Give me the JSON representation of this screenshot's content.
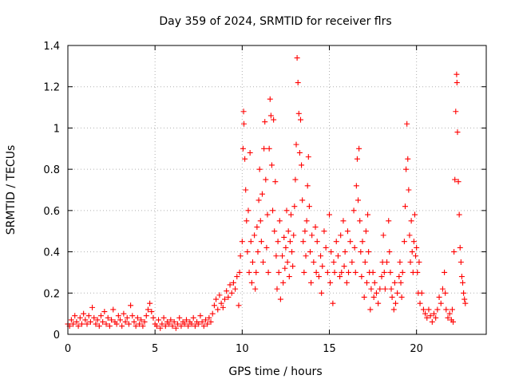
{
  "chart_data": {
    "type": "scatter",
    "title": "Day 359 of 2024, SRMTID for receiver flrs",
    "xlabel": "GPS time / hours",
    "ylabel": "SRMTID / TECUs",
    "xlim": [
      0,
      24
    ],
    "ylim": [
      0,
      1.4
    ],
    "xticks": [
      0,
      5,
      10,
      15,
      20
    ],
    "xtick_labels": [
      "0",
      "5",
      "10",
      "15",
      "20"
    ],
    "yticks": [
      0,
      0.2,
      0.4,
      0.6,
      0.8,
      1.0,
      1.2,
      1.4
    ],
    "ytick_labels": [
      "0",
      "0.2",
      "0.4",
      "0.6",
      "0.8",
      "1",
      "1.2",
      "1.4"
    ],
    "grid": true,
    "marker": "+",
    "color": "#ff0000",
    "series": [
      {
        "name": "SRMTID",
        "points": [
          [
            0.0,
            0.05
          ],
          [
            0.1,
            0.04
          ],
          [
            0.2,
            0.07
          ],
          [
            0.3,
            0.05
          ],
          [
            0.4,
            0.09
          ],
          [
            0.5,
            0.06
          ],
          [
            0.6,
            0.04
          ],
          [
            0.7,
            0.08
          ],
          [
            0.8,
            0.05
          ],
          [
            0.9,
            0.1
          ],
          [
            1.0,
            0.07
          ],
          [
            1.1,
            0.05
          ],
          [
            1.2,
            0.09
          ],
          [
            1.3,
            0.06
          ],
          [
            1.4,
            0.13
          ],
          [
            1.5,
            0.08
          ],
          [
            1.6,
            0.05
          ],
          [
            1.7,
            0.07
          ],
          [
            1.8,
            0.04
          ],
          [
            1.9,
            0.09
          ],
          [
            2.0,
            0.06
          ],
          [
            2.1,
            0.11
          ],
          [
            2.2,
            0.05
          ],
          [
            2.3,
            0.08
          ],
          [
            2.4,
            0.04
          ],
          [
            2.5,
            0.07
          ],
          [
            2.6,
            0.12
          ],
          [
            2.7,
            0.06
          ],
          [
            2.8,
            0.05
          ],
          [
            2.9,
            0.09
          ],
          [
            3.0,
            0.07
          ],
          [
            3.1,
            0.04
          ],
          [
            3.2,
            0.1
          ],
          [
            3.3,
            0.06
          ],
          [
            3.4,
            0.08
          ],
          [
            3.5,
            0.05
          ],
          [
            3.6,
            0.14
          ],
          [
            3.7,
            0.09
          ],
          [
            3.8,
            0.06
          ],
          [
            3.9,
            0.04
          ],
          [
            4.0,
            0.08
          ],
          [
            4.1,
            0.05
          ],
          [
            4.2,
            0.07
          ],
          [
            4.3,
            0.04
          ],
          [
            4.4,
            0.06
          ],
          [
            4.5,
            0.09
          ],
          [
            4.6,
            0.12
          ],
          [
            4.7,
            0.15
          ],
          [
            4.8,
            0.11
          ],
          [
            4.9,
            0.08
          ],
          [
            5.0,
            0.05
          ],
          [
            5.1,
            0.04
          ],
          [
            5.2,
            0.07
          ],
          [
            5.3,
            0.03
          ],
          [
            5.4,
            0.05
          ],
          [
            5.5,
            0.08
          ],
          [
            5.6,
            0.04
          ],
          [
            5.7,
            0.06
          ],
          [
            5.8,
            0.05
          ],
          [
            5.9,
            0.07
          ],
          [
            6.0,
            0.04
          ],
          [
            6.1,
            0.06
          ],
          [
            6.2,
            0.03
          ],
          [
            6.3,
            0.05
          ],
          [
            6.4,
            0.08
          ],
          [
            6.5,
            0.04
          ],
          [
            6.6,
            0.06
          ],
          [
            6.7,
            0.05
          ],
          [
            6.8,
            0.07
          ],
          [
            6.9,
            0.04
          ],
          [
            7.0,
            0.06
          ],
          [
            7.1,
            0.05
          ],
          [
            7.2,
            0.08
          ],
          [
            7.3,
            0.04
          ],
          [
            7.4,
            0.06
          ],
          [
            7.5,
            0.05
          ],
          [
            7.6,
            0.09
          ],
          [
            7.7,
            0.06
          ],
          [
            7.8,
            0.04
          ],
          [
            7.9,
            0.07
          ],
          [
            8.0,
            0.05
          ],
          [
            8.1,
            0.08
          ],
          [
            8.2,
            0.06
          ],
          [
            8.3,
            0.1
          ],
          [
            8.4,
            0.14
          ],
          [
            8.5,
            0.17
          ],
          [
            8.6,
            0.12
          ],
          [
            8.7,
            0.19
          ],
          [
            8.8,
            0.15
          ],
          [
            8.9,
            0.13
          ],
          [
            9.0,
            0.17
          ],
          [
            9.1,
            0.21
          ],
          [
            9.2,
            0.18
          ],
          [
            9.3,
            0.24
          ],
          [
            9.4,
            0.2
          ],
          [
            9.5,
            0.25
          ],
          [
            9.6,
            0.22
          ],
          [
            9.7,
            0.28
          ],
          [
            9.8,
            0.14
          ],
          [
            9.85,
            0.3
          ],
          [
            9.9,
            0.38
          ],
          [
            10.0,
            0.45
          ],
          [
            10.05,
            0.9
          ],
          [
            10.08,
            1.08
          ],
          [
            10.1,
            1.02
          ],
          [
            10.15,
            0.85
          ],
          [
            10.2,
            0.7
          ],
          [
            10.25,
            0.55
          ],
          [
            10.3,
            0.4
          ],
          [
            10.35,
            0.6
          ],
          [
            10.4,
            0.3
          ],
          [
            10.45,
            0.88
          ],
          [
            10.5,
            0.45
          ],
          [
            10.55,
            0.25
          ],
          [
            10.6,
            0.35
          ],
          [
            10.7,
            0.48
          ],
          [
            10.75,
            0.22
          ],
          [
            10.8,
            0.3
          ],
          [
            10.85,
            0.52
          ],
          [
            10.9,
            0.4
          ],
          [
            10.95,
            0.65
          ],
          [
            11.0,
            0.8
          ],
          [
            11.05,
            0.55
          ],
          [
            11.1,
            0.45
          ],
          [
            11.15,
            0.68
          ],
          [
            11.2,
            0.35
          ],
          [
            11.25,
            0.9
          ],
          [
            11.3,
            1.03
          ],
          [
            11.35,
            0.75
          ],
          [
            11.4,
            0.42
          ],
          [
            11.45,
            0.58
          ],
          [
            11.5,
            0.3
          ],
          [
            11.55,
            0.9
          ],
          [
            11.6,
            1.14
          ],
          [
            11.65,
            1.06
          ],
          [
            11.7,
            0.82
          ],
          [
            11.75,
            0.6
          ],
          [
            11.8,
            1.04
          ],
          [
            11.85,
            0.5
          ],
          [
            11.9,
            0.74
          ],
          [
            11.95,
            0.38
          ],
          [
            12.0,
            0.22
          ],
          [
            12.05,
            0.45
          ],
          [
            12.1,
            0.3
          ],
          [
            12.15,
            0.55
          ],
          [
            12.2,
            0.17
          ],
          [
            12.3,
            0.38
          ],
          [
            12.35,
            0.25
          ],
          [
            12.4,
            0.47
          ],
          [
            12.45,
            0.32
          ],
          [
            12.5,
            0.42
          ],
          [
            12.55,
            0.6
          ],
          [
            12.6,
            0.35
          ],
          [
            12.65,
            0.5
          ],
          [
            12.7,
            0.28
          ],
          [
            12.75,
            0.45
          ],
          [
            12.8,
            0.58
          ],
          [
            12.85,
            0.4
          ],
          [
            12.9,
            0.33
          ],
          [
            12.95,
            0.48
          ],
          [
            13.0,
            0.62
          ],
          [
            13.05,
            0.75
          ],
          [
            13.1,
            0.92
          ],
          [
            13.15,
            1.34
          ],
          [
            13.2,
            1.22
          ],
          [
            13.25,
            1.07
          ],
          [
            13.3,
            0.88
          ],
          [
            13.35,
            1.04
          ],
          [
            13.4,
            0.82
          ],
          [
            13.45,
            0.65
          ],
          [
            13.5,
            0.45
          ],
          [
            13.55,
            0.3
          ],
          [
            13.6,
            0.5
          ],
          [
            13.65,
            0.38
          ],
          [
            13.7,
            0.55
          ],
          [
            13.75,
            0.72
          ],
          [
            13.8,
            0.86
          ],
          [
            13.85,
            0.62
          ],
          [
            13.9,
            0.4
          ],
          [
            13.95,
            0.25
          ],
          [
            14.0,
            0.48
          ],
          [
            14.1,
            0.35
          ],
          [
            14.2,
            0.52
          ],
          [
            14.25,
            0.3
          ],
          [
            14.3,
            0.45
          ],
          [
            14.4,
            0.28
          ],
          [
            14.5,
            0.38
          ],
          [
            14.55,
            0.2
          ],
          [
            14.6,
            0.33
          ],
          [
            14.7,
            0.5
          ],
          [
            14.8,
            0.42
          ],
          [
            14.9,
            0.3
          ],
          [
            15.0,
            0.58
          ],
          [
            15.05,
            0.25
          ],
          [
            15.1,
            0.4
          ],
          [
            15.2,
            0.15
          ],
          [
            15.25,
            0.35
          ],
          [
            15.3,
            0.3
          ],
          [
            15.4,
            0.45
          ],
          [
            15.5,
            0.38
          ],
          [
            15.6,
            0.28
          ],
          [
            15.65,
            0.48
          ],
          [
            15.7,
            0.3
          ],
          [
            15.8,
            0.55
          ],
          [
            15.85,
            0.33
          ],
          [
            15.9,
            0.4
          ],
          [
            16.0,
            0.25
          ],
          [
            16.05,
            0.5
          ],
          [
            16.1,
            0.3
          ],
          [
            16.2,
            0.45
          ],
          [
            16.3,
            0.35
          ],
          [
            16.4,
            0.6
          ],
          [
            16.45,
            0.42
          ],
          [
            16.5,
            0.3
          ],
          [
            16.55,
            0.72
          ],
          [
            16.6,
            0.85
          ],
          [
            16.65,
            0.65
          ],
          [
            16.7,
            0.9
          ],
          [
            16.75,
            0.55
          ],
          [
            16.8,
            0.4
          ],
          [
            16.85,
            0.28
          ],
          [
            16.9,
            0.45
          ],
          [
            17.0,
            0.18
          ],
          [
            17.05,
            0.35
          ],
          [
            17.1,
            0.5
          ],
          [
            17.15,
            0.25
          ],
          [
            17.2,
            0.58
          ],
          [
            17.25,
            0.4
          ],
          [
            17.3,
            0.3
          ],
          [
            17.35,
            0.12
          ],
          [
            17.4,
            0.22
          ],
          [
            17.5,
            0.3
          ],
          [
            17.55,
            0.18
          ],
          [
            17.6,
            0.25
          ],
          [
            17.7,
            0.2
          ],
          [
            17.8,
            0.15
          ],
          [
            17.9,
            0.22
          ],
          [
            18.0,
            0.28
          ],
          [
            18.05,
            0.35
          ],
          [
            18.1,
            0.48
          ],
          [
            18.15,
            0.3
          ],
          [
            18.2,
            0.22
          ],
          [
            18.3,
            0.35
          ],
          [
            18.4,
            0.55
          ],
          [
            18.45,
            0.4
          ],
          [
            18.5,
            0.3
          ],
          [
            18.55,
            0.22
          ],
          [
            18.6,
            0.18
          ],
          [
            18.7,
            0.12
          ],
          [
            18.75,
            0.25
          ],
          [
            18.8,
            0.15
          ],
          [
            18.9,
            0.2
          ],
          [
            19.0,
            0.28
          ],
          [
            19.05,
            0.35
          ],
          [
            19.1,
            0.25
          ],
          [
            19.15,
            0.18
          ],
          [
            19.2,
            0.3
          ],
          [
            19.3,
            0.45
          ],
          [
            19.35,
            0.62
          ],
          [
            19.4,
            0.8
          ],
          [
            19.45,
            1.02
          ],
          [
            19.5,
            0.85
          ],
          [
            19.55,
            0.7
          ],
          [
            19.6,
            0.48
          ],
          [
            19.65,
            0.35
          ],
          [
            19.7,
            0.55
          ],
          [
            19.75,
            0.4
          ],
          [
            19.8,
            0.3
          ],
          [
            19.85,
            0.45
          ],
          [
            19.9,
            0.58
          ],
          [
            19.95,
            0.38
          ],
          [
            20.0,
            0.42
          ],
          [
            20.05,
            0.3
          ],
          [
            20.1,
            0.2
          ],
          [
            20.15,
            0.35
          ],
          [
            20.2,
            0.15
          ],
          [
            20.3,
            0.2
          ],
          [
            20.4,
            0.12
          ],
          [
            20.5,
            0.1
          ],
          [
            20.6,
            0.08
          ],
          [
            20.7,
            0.12
          ],
          [
            20.8,
            0.09
          ],
          [
            20.9,
            0.06
          ],
          [
            21.0,
            0.1
          ],
          [
            21.1,
            0.08
          ],
          [
            21.2,
            0.12
          ],
          [
            21.3,
            0.18
          ],
          [
            21.4,
            0.15
          ],
          [
            21.5,
            0.22
          ],
          [
            21.6,
            0.3
          ],
          [
            21.65,
            0.2
          ],
          [
            21.7,
            0.12
          ],
          [
            21.8,
            0.08
          ],
          [
            21.9,
            0.1
          ],
          [
            22.0,
            0.07
          ],
          [
            22.05,
            0.12
          ],
          [
            22.1,
            0.06
          ],
          [
            22.15,
            0.4
          ],
          [
            22.2,
            0.75
          ],
          [
            22.25,
            1.08
          ],
          [
            22.3,
            1.26
          ],
          [
            22.32,
            1.22
          ],
          [
            22.35,
            0.98
          ],
          [
            22.4,
            0.74
          ],
          [
            22.45,
            0.58
          ],
          [
            22.5,
            0.42
          ],
          [
            22.55,
            0.35
          ],
          [
            22.6,
            0.28
          ],
          [
            22.65,
            0.25
          ],
          [
            22.7,
            0.2
          ],
          [
            22.75,
            0.17
          ],
          [
            22.8,
            0.15
          ]
        ]
      }
    ]
  }
}
